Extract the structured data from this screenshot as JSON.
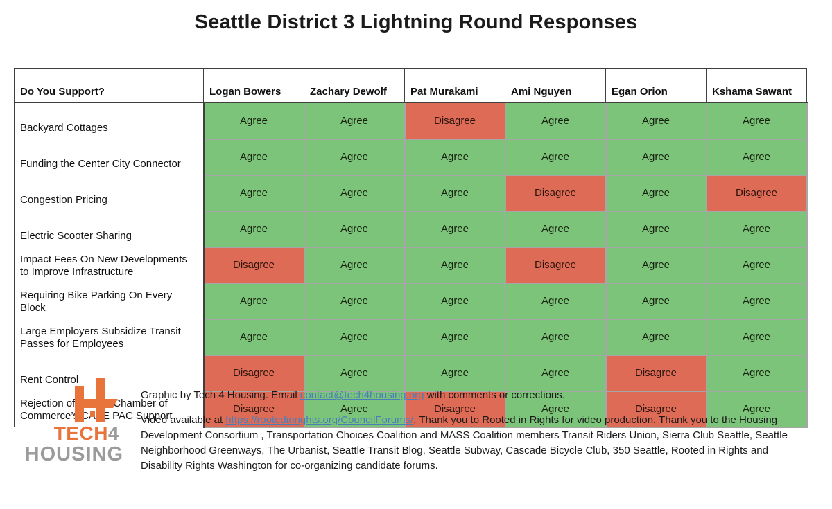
{
  "title": "Seattle District 3 Lightning Round Responses",
  "chart_data": {
    "type": "table",
    "title": "Seattle District 3 Lightning Round Responses",
    "corner_header": "Do You Support?",
    "columns": [
      "Logan Bowers",
      "Zachary Dewolf",
      "Pat Murakami",
      "Ami Nguyen",
      "Egan Orion",
      "Kshama Sawant"
    ],
    "rows": [
      {
        "label": "Backyard Cottages",
        "values": [
          "Agree",
          "Agree",
          "Disagree",
          "Agree",
          "Agree",
          "Agree"
        ]
      },
      {
        "label": "Funding the Center City Connector",
        "values": [
          "Agree",
          "Agree",
          "Agree",
          "Agree",
          "Agree",
          "Agree"
        ]
      },
      {
        "label": "Congestion Pricing",
        "values": [
          "Agree",
          "Agree",
          "Agree",
          "Disagree",
          "Agree",
          "Disagree"
        ]
      },
      {
        "label": "Electric Scooter Sharing",
        "values": [
          "Agree",
          "Agree",
          "Agree",
          "Agree",
          "Agree",
          "Agree"
        ]
      },
      {
        "label": "Impact Fees On New Developments to Improve Infrastructure",
        "values": [
          "Disagree",
          "Agree",
          "Agree",
          "Disagree",
          "Agree",
          "Agree"
        ]
      },
      {
        "label": "Requiring Bike Parking On Every Block",
        "values": [
          "Agree",
          "Agree",
          "Agree",
          "Agree",
          "Agree",
          "Agree"
        ]
      },
      {
        "label": "Large Employers Subsidize Transit Passes for Employees",
        "values": [
          "Agree",
          "Agree",
          "Agree",
          "Agree",
          "Agree",
          "Agree"
        ]
      },
      {
        "label": "Rent Control",
        "values": [
          "Disagree",
          "Agree",
          "Agree",
          "Agree",
          "Disagree",
          "Agree"
        ]
      },
      {
        "label": "Rejection of Seattle Chamber of Commerce’s CASE PAC Support",
        "values": [
          "Disagree",
          "Agree",
          "Disagree",
          "Agree",
          "Disagree",
          "Agree"
        ]
      }
    ],
    "cell_colors": {
      "Agree": "#7cc47a",
      "Disagree": "#dd6b55"
    },
    "legend_position": "none",
    "grid": true
  },
  "logo": {
    "mark_icon": "tech4housing-h-mark",
    "word_orange": "TECH",
    "word_gray": "4",
    "word_bottom": "HOUSING",
    "orange": "#e8743b",
    "gray": "#9b9b9b"
  },
  "footer": {
    "contact_prefix": "Graphic by Tech 4 Housing. Email ",
    "contact_email": "contact@tech4housing.org",
    "contact_suffix": " with comments or corrections.",
    "credits_prefix": "Video available at ",
    "credits_link": "https://rootedinrights.org/CouncilForums/",
    "credits_suffix": ". Thank you to Rooted in Rights for video production. Thank you to the Housing Development Consortium , Transportation Choices Coalition and MASS Coalition members Transit Riders Union, Sierra Club Seattle, Seattle Neighborhood Greenways, The Urbanist, Seattle Transit Blog, Seattle Subway, Cascade Bicycle Club, 350 Seattle, Rooted in Rights and Disability Rights Washington for co-organizing candidate forums."
  }
}
